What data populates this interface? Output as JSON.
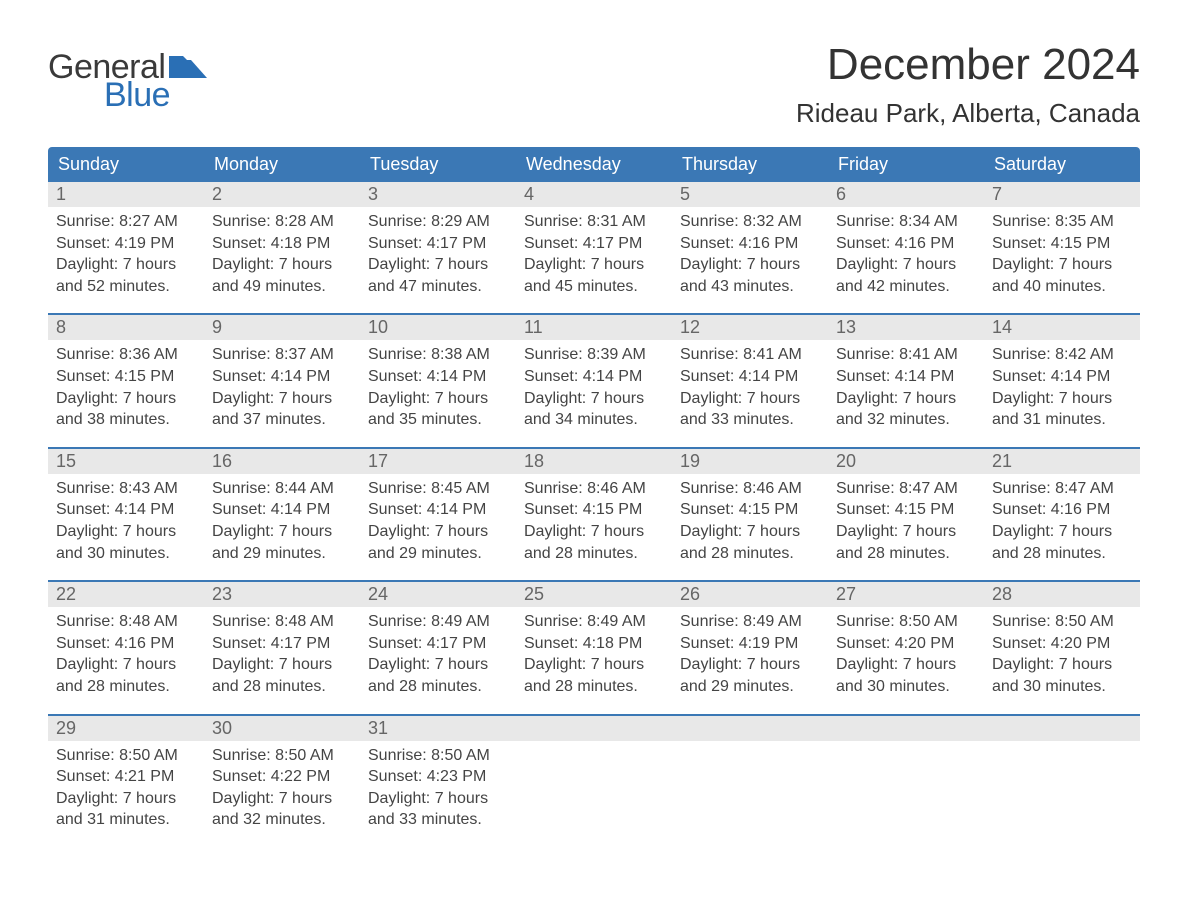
{
  "brand": {
    "line1": "General",
    "line2": "Blue"
  },
  "title": "December 2024",
  "location": "Rideau Park, Alberta, Canada",
  "colors": {
    "header_bg": "#3b78b5",
    "header_text": "#ffffff",
    "daynum_bg": "#e8e8e8",
    "week_border": "#3b78b5",
    "body_text": "#444444",
    "brand_blue": "#2a6fb5"
  },
  "columns": [
    "Sunday",
    "Monday",
    "Tuesday",
    "Wednesday",
    "Thursday",
    "Friday",
    "Saturday"
  ],
  "weeks": [
    [
      {
        "n": "1",
        "sr": "Sunrise: 8:27 AM",
        "ss": "Sunset: 4:19 PM",
        "d1": "Daylight: 7 hours",
        "d2": "and 52 minutes."
      },
      {
        "n": "2",
        "sr": "Sunrise: 8:28 AM",
        "ss": "Sunset: 4:18 PM",
        "d1": "Daylight: 7 hours",
        "d2": "and 49 minutes."
      },
      {
        "n": "3",
        "sr": "Sunrise: 8:29 AM",
        "ss": "Sunset: 4:17 PM",
        "d1": "Daylight: 7 hours",
        "d2": "and 47 minutes."
      },
      {
        "n": "4",
        "sr": "Sunrise: 8:31 AM",
        "ss": "Sunset: 4:17 PM",
        "d1": "Daylight: 7 hours",
        "d2": "and 45 minutes."
      },
      {
        "n": "5",
        "sr": "Sunrise: 8:32 AM",
        "ss": "Sunset: 4:16 PM",
        "d1": "Daylight: 7 hours",
        "d2": "and 43 minutes."
      },
      {
        "n": "6",
        "sr": "Sunrise: 8:34 AM",
        "ss": "Sunset: 4:16 PM",
        "d1": "Daylight: 7 hours",
        "d2": "and 42 minutes."
      },
      {
        "n": "7",
        "sr": "Sunrise: 8:35 AM",
        "ss": "Sunset: 4:15 PM",
        "d1": "Daylight: 7 hours",
        "d2": "and 40 minutes."
      }
    ],
    [
      {
        "n": "8",
        "sr": "Sunrise: 8:36 AM",
        "ss": "Sunset: 4:15 PM",
        "d1": "Daylight: 7 hours",
        "d2": "and 38 minutes."
      },
      {
        "n": "9",
        "sr": "Sunrise: 8:37 AM",
        "ss": "Sunset: 4:14 PM",
        "d1": "Daylight: 7 hours",
        "d2": "and 37 minutes."
      },
      {
        "n": "10",
        "sr": "Sunrise: 8:38 AM",
        "ss": "Sunset: 4:14 PM",
        "d1": "Daylight: 7 hours",
        "d2": "and 35 minutes."
      },
      {
        "n": "11",
        "sr": "Sunrise: 8:39 AM",
        "ss": "Sunset: 4:14 PM",
        "d1": "Daylight: 7 hours",
        "d2": "and 34 minutes."
      },
      {
        "n": "12",
        "sr": "Sunrise: 8:41 AM",
        "ss": "Sunset: 4:14 PM",
        "d1": "Daylight: 7 hours",
        "d2": "and 33 minutes."
      },
      {
        "n": "13",
        "sr": "Sunrise: 8:41 AM",
        "ss": "Sunset: 4:14 PM",
        "d1": "Daylight: 7 hours",
        "d2": "and 32 minutes."
      },
      {
        "n": "14",
        "sr": "Sunrise: 8:42 AM",
        "ss": "Sunset: 4:14 PM",
        "d1": "Daylight: 7 hours",
        "d2": "and 31 minutes."
      }
    ],
    [
      {
        "n": "15",
        "sr": "Sunrise: 8:43 AM",
        "ss": "Sunset: 4:14 PM",
        "d1": "Daylight: 7 hours",
        "d2": "and 30 minutes."
      },
      {
        "n": "16",
        "sr": "Sunrise: 8:44 AM",
        "ss": "Sunset: 4:14 PM",
        "d1": "Daylight: 7 hours",
        "d2": "and 29 minutes."
      },
      {
        "n": "17",
        "sr": "Sunrise: 8:45 AM",
        "ss": "Sunset: 4:14 PM",
        "d1": "Daylight: 7 hours",
        "d2": "and 29 minutes."
      },
      {
        "n": "18",
        "sr": "Sunrise: 8:46 AM",
        "ss": "Sunset: 4:15 PM",
        "d1": "Daylight: 7 hours",
        "d2": "and 28 minutes."
      },
      {
        "n": "19",
        "sr": "Sunrise: 8:46 AM",
        "ss": "Sunset: 4:15 PM",
        "d1": "Daylight: 7 hours",
        "d2": "and 28 minutes."
      },
      {
        "n": "20",
        "sr": "Sunrise: 8:47 AM",
        "ss": "Sunset: 4:15 PM",
        "d1": "Daylight: 7 hours",
        "d2": "and 28 minutes."
      },
      {
        "n": "21",
        "sr": "Sunrise: 8:47 AM",
        "ss": "Sunset: 4:16 PM",
        "d1": "Daylight: 7 hours",
        "d2": "and 28 minutes."
      }
    ],
    [
      {
        "n": "22",
        "sr": "Sunrise: 8:48 AM",
        "ss": "Sunset: 4:16 PM",
        "d1": "Daylight: 7 hours",
        "d2": "and 28 minutes."
      },
      {
        "n": "23",
        "sr": "Sunrise: 8:48 AM",
        "ss": "Sunset: 4:17 PM",
        "d1": "Daylight: 7 hours",
        "d2": "and 28 minutes."
      },
      {
        "n": "24",
        "sr": "Sunrise: 8:49 AM",
        "ss": "Sunset: 4:17 PM",
        "d1": "Daylight: 7 hours",
        "d2": "and 28 minutes."
      },
      {
        "n": "25",
        "sr": "Sunrise: 8:49 AM",
        "ss": "Sunset: 4:18 PM",
        "d1": "Daylight: 7 hours",
        "d2": "and 28 minutes."
      },
      {
        "n": "26",
        "sr": "Sunrise: 8:49 AM",
        "ss": "Sunset: 4:19 PM",
        "d1": "Daylight: 7 hours",
        "d2": "and 29 minutes."
      },
      {
        "n": "27",
        "sr": "Sunrise: 8:50 AM",
        "ss": "Sunset: 4:20 PM",
        "d1": "Daylight: 7 hours",
        "d2": "and 30 minutes."
      },
      {
        "n": "28",
        "sr": "Sunrise: 8:50 AM",
        "ss": "Sunset: 4:20 PM",
        "d1": "Daylight: 7 hours",
        "d2": "and 30 minutes."
      }
    ],
    [
      {
        "n": "29",
        "sr": "Sunrise: 8:50 AM",
        "ss": "Sunset: 4:21 PM",
        "d1": "Daylight: 7 hours",
        "d2": "and 31 minutes."
      },
      {
        "n": "30",
        "sr": "Sunrise: 8:50 AM",
        "ss": "Sunset: 4:22 PM",
        "d1": "Daylight: 7 hours",
        "d2": "and 32 minutes."
      },
      {
        "n": "31",
        "sr": "Sunrise: 8:50 AM",
        "ss": "Sunset: 4:23 PM",
        "d1": "Daylight: 7 hours",
        "d2": "and 33 minutes."
      },
      null,
      null,
      null,
      null
    ]
  ]
}
